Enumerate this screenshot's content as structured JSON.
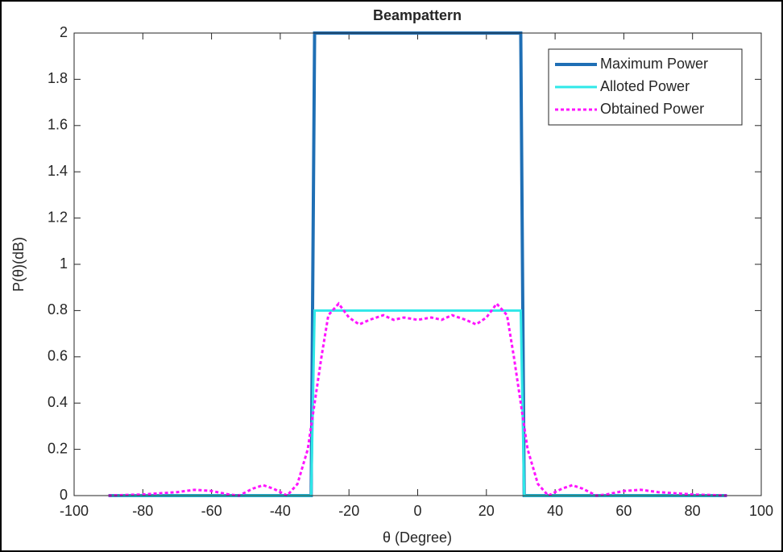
{
  "chart_data": {
    "type": "line",
    "title": "Beampattern",
    "xlabel": "θ (Degree)",
    "ylabel": "P(θ)(dB)",
    "xlim": [
      -100,
      100
    ],
    "xticks": [
      -100,
      -80,
      -60,
      -40,
      -20,
      0,
      20,
      40,
      60,
      80,
      100
    ],
    "ylim": [
      0,
      2
    ],
    "yticks": [
      0,
      0.2,
      0.4,
      0.6,
      0.8,
      1,
      1.2,
      1.4,
      1.6,
      1.8,
      2
    ],
    "legend": "northeast",
    "series": [
      {
        "name": "Maximum Power",
        "color": "#1f6fb5",
        "style": "solid",
        "width": 4,
        "x": [
          -90,
          -31,
          -30,
          30,
          31,
          90
        ],
        "values": [
          0,
          0,
          2,
          2,
          0,
          0
        ]
      },
      {
        "name": "Alloted Power",
        "color": "#2fe8e8",
        "style": "solid",
        "width": 3,
        "x": [
          -90,
          -31,
          -30,
          30,
          31,
          90
        ],
        "values": [
          0,
          0,
          0.8,
          0.8,
          0,
          0
        ]
      },
      {
        "name": "Obtained Power",
        "color": "#ff14ff",
        "style": "dotted",
        "width": 3,
        "x": [
          -90,
          -80,
          -70,
          -65,
          -60,
          -55,
          -52,
          -48,
          -45,
          -42,
          -38,
          -35,
          -32,
          -30,
          -28,
          -26,
          -23,
          -20,
          -17,
          -14,
          -10,
          -7,
          -4,
          0,
          4,
          7,
          10,
          14,
          17,
          20,
          23,
          26,
          28,
          30,
          32,
          35,
          38,
          42,
          45,
          48,
          52,
          55,
          60,
          65,
          70,
          80,
          90
        ],
        "values": [
          0,
          0.005,
          0.015,
          0.025,
          0.02,
          0.005,
          0,
          0.03,
          0.045,
          0.03,
          0,
          0.05,
          0.2,
          0.4,
          0.6,
          0.78,
          0.83,
          0.77,
          0.74,
          0.76,
          0.78,
          0.76,
          0.77,
          0.76,
          0.77,
          0.76,
          0.78,
          0.76,
          0.74,
          0.77,
          0.83,
          0.78,
          0.6,
          0.4,
          0.2,
          0.05,
          0,
          0.03,
          0.045,
          0.03,
          0,
          0.005,
          0.02,
          0.025,
          0.015,
          0.005,
          0
        ]
      }
    ]
  }
}
